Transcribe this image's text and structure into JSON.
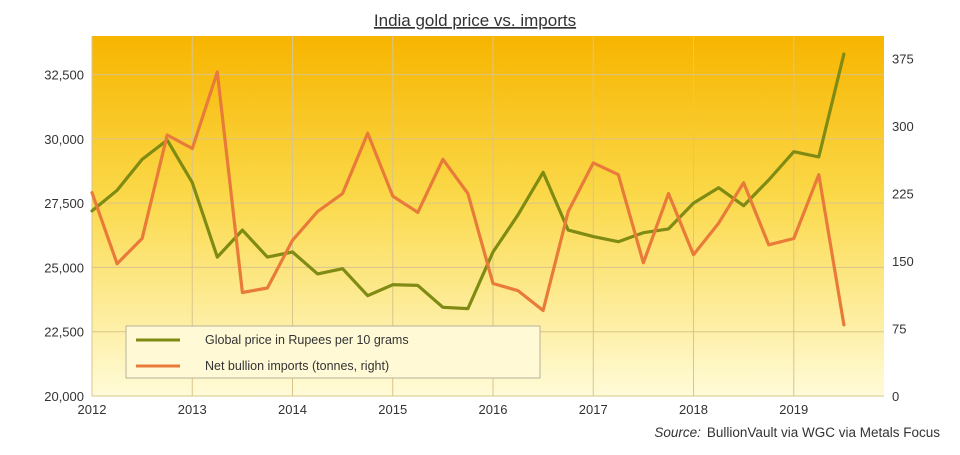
{
  "chart_data": {
    "type": "line",
    "title": "India gold price vs. imports",
    "source_label": "Source:",
    "source_text": "BullionVault via WGC via Metals Focus",
    "xlim": [
      2012,
      2019.9
    ],
    "x_ticks": [
      2012,
      2013,
      2014,
      2015,
      2016,
      2017,
      2018,
      2019
    ],
    "y_left": {
      "ylim": [
        20000,
        34000
      ],
      "ticks": [
        20000,
        22500,
        25000,
        27500,
        30000,
        32500
      ],
      "tick_labels": [
        "20,000",
        "22,500",
        "25,000",
        "27,500",
        "30,000",
        "32,500"
      ]
    },
    "y_right": {
      "ylim": [
        0,
        400
      ],
      "ticks": [
        0,
        75,
        150,
        225,
        300,
        375
      ],
      "tick_labels": [
        "0",
        "75",
        "150",
        "225",
        "300",
        "375"
      ]
    },
    "grid": true,
    "legend_position": "bottom-left",
    "series": [
      {
        "name": "Global price in Rupees per 10 grams",
        "axis": "left",
        "color": "#7f8b12",
        "x": [
          2012.0,
          2012.25,
          2012.5,
          2012.75,
          2013.0,
          2013.25,
          2013.5,
          2013.75,
          2014.0,
          2014.25,
          2014.5,
          2014.75,
          2015.0,
          2015.25,
          2015.5,
          2015.75,
          2016.0,
          2016.25,
          2016.5,
          2016.75,
          2017.0,
          2017.25,
          2017.5,
          2017.75,
          2018.0,
          2018.25,
          2018.5,
          2018.75,
          2019.0,
          2019.25,
          2019.5
        ],
        "values": [
          27200,
          28000,
          29200,
          29950,
          28300,
          25400,
          26450,
          25400,
          25600,
          24750,
          24950,
          23900,
          24330,
          24300,
          23450,
          23400,
          25600,
          27050,
          28700,
          26450,
          26200,
          26000,
          26350,
          26500,
          27500,
          28100,
          27400,
          28400,
          29500,
          29300,
          33300
        ]
      },
      {
        "name": "Net bullion imports (tonnes, right)",
        "axis": "right",
        "color": "#e97b3a",
        "x": [
          2012.0,
          2012.25,
          2012.5,
          2012.75,
          2013.0,
          2013.25,
          2013.5,
          2013.75,
          2014.0,
          2014.25,
          2014.5,
          2014.75,
          2015.0,
          2015.25,
          2015.5,
          2015.75,
          2016.0,
          2016.25,
          2016.5,
          2016.75,
          2017.0,
          2017.25,
          2017.5,
          2017.75,
          2018.0,
          2018.25,
          2018.5,
          2018.75,
          2019.0,
          2019.25,
          2019.5
        ],
        "values": [
          226,
          147,
          175,
          290,
          275,
          360,
          115,
          120,
          173,
          205,
          225,
          292,
          222,
          204,
          263,
          225,
          125,
          117,
          95,
          205,
          259,
          246,
          148,
          225,
          157,
          192,
          237,
          168,
          175,
          246,
          79
        ]
      }
    ]
  }
}
